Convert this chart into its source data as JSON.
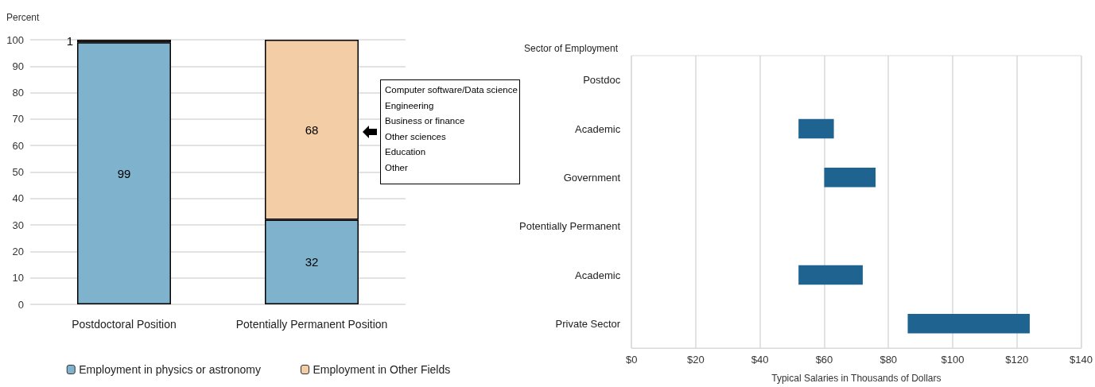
{
  "chart_data": [
    {
      "type": "bar",
      "stacked": true,
      "ylabel": "Percent",
      "categories": [
        "Postdoctoral Position",
        "Potentially Permanent Position"
      ],
      "series": [
        {
          "name": "Employment in physics or astronomy",
          "color": "#7fb3cd",
          "values": [
            99,
            32
          ]
        },
        {
          "name": "Employment in Other Fields",
          "color": "#f3cda5",
          "values": [
            1,
            68
          ]
        }
      ],
      "ylim": [
        0,
        100
      ],
      "yticks": [
        0,
        10,
        20,
        30,
        40,
        50,
        60,
        70,
        80,
        90,
        100
      ],
      "grid": "y",
      "legend": "bottom",
      "data_labels": true,
      "annotations": [
        "Computer software/Data science",
        "Engineering",
        "Business or finance",
        "Other sciences",
        "Education",
        "Other"
      ]
    },
    {
      "type": "bar",
      "orientation": "horizontal",
      "ylabel": "Sector of Employment",
      "xlabel": "Typical Salaries in Thousands of Dollars",
      "categories": [
        "Postdoc",
        "Academic",
        "Government",
        "Potentially Permanent",
        "Academic",
        "Private Sector"
      ],
      "values": [
        null,
        11,
        16,
        null,
        20,
        38
      ],
      "base": [
        null,
        52,
        60,
        null,
        52,
        86
      ],
      "color": "#1f6391",
      "xlim": [
        0,
        140
      ],
      "xticks": [
        {
          "value": 0,
          "label": "$0"
        },
        {
          "value": 20,
          "label": "$20"
        },
        {
          "value": 40,
          "label": "$40"
        },
        {
          "value": 60,
          "label": "$60"
        },
        {
          "value": 80,
          "label": "$80"
        },
        {
          "value": 100,
          "label": "$100"
        },
        {
          "value": 120,
          "label": "$120"
        },
        {
          "value": 140,
          "label": "$140"
        }
      ],
      "grid": "x"
    }
  ]
}
